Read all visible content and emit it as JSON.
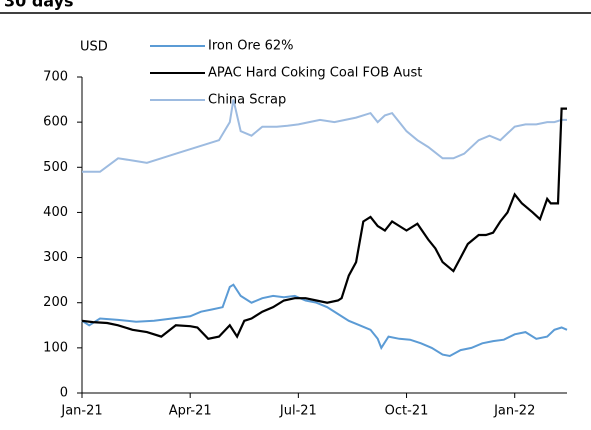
{
  "chart_data": {
    "type": "line",
    "title": "30 days",
    "y_label": "USD",
    "xlim": [
      0,
      13.45
    ],
    "xticks": [
      {
        "value": 0,
        "label": "Jan-21"
      },
      {
        "value": 3,
        "label": "Apr-21"
      },
      {
        "value": 6,
        "label": "Jul-21"
      },
      {
        "value": 9,
        "label": "Oct-21"
      },
      {
        "value": 12,
        "label": "Jan-22"
      }
    ],
    "ylim": [
      0,
      700
    ],
    "yticks": [
      0,
      100,
      200,
      300,
      400,
      500,
      600,
      700
    ],
    "grid": false,
    "legend": "top-left",
    "series": [
      {
        "name": "Iron Ore 62%",
        "color": "#5b9bd5",
        "x": [
          0,
          0.2,
          0.5,
          1,
          1.5,
          2,
          2.5,
          3,
          3.3,
          3.6,
          3.9,
          4.1,
          4.2,
          4.4,
          4.7,
          5,
          5.3,
          5.6,
          5.9,
          6.2,
          6.5,
          6.8,
          7.1,
          7.4,
          7.7,
          8,
          8.2,
          8.3,
          8.5,
          8.8,
          9.1,
          9.4,
          9.7,
          10,
          10.2,
          10.5,
          10.8,
          11.1,
          11.4,
          11.7,
          12,
          12.3,
          12.6,
          12.9,
          13.1,
          13.3,
          13.45
        ],
        "values": [
          160,
          150,
          165,
          162,
          158,
          160,
          165,
          170,
          180,
          185,
          190,
          235,
          240,
          215,
          200,
          210,
          215,
          212,
          215,
          205,
          200,
          190,
          175,
          160,
          150,
          140,
          120,
          100,
          125,
          120,
          118,
          110,
          100,
          85,
          82,
          95,
          100,
          110,
          115,
          118,
          130,
          135,
          120,
          125,
          140,
          145,
          140
        ]
      },
      {
        "name": "APAC Hard Coking Coal FOB Aust",
        "color": "#000000",
        "x": [
          0,
          0.3,
          0.7,
          1,
          1.4,
          1.8,
          2.2,
          2.6,
          3,
          3.2,
          3.5,
          3.8,
          4.1,
          4.3,
          4.5,
          4.7,
          5,
          5.3,
          5.6,
          5.9,
          6.2,
          6.5,
          6.8,
          7.1,
          7.2,
          7.4,
          7.6,
          7.8,
          8,
          8.2,
          8.4,
          8.6,
          8.8,
          9,
          9.3,
          9.6,
          9.8,
          10,
          10.3,
          10.5,
          10.7,
          11,
          11.2,
          11.4,
          11.6,
          11.8,
          12,
          12.2,
          12.5,
          12.7,
          12.9,
          13,
          13.2,
          13.3,
          13.45
        ],
        "values": [
          160,
          157,
          155,
          150,
          140,
          135,
          125,
          150,
          148,
          145,
          120,
          125,
          150,
          125,
          160,
          165,
          180,
          190,
          205,
          210,
          210,
          205,
          200,
          205,
          210,
          260,
          290,
          380,
          390,
          370,
          360,
          380,
          370,
          360,
          375,
          340,
          320,
          290,
          270,
          300,
          330,
          350,
          350,
          355,
          380,
          400,
          440,
          420,
          400,
          385,
          430,
          420,
          420,
          630,
          630
        ]
      },
      {
        "name": "China Scrap",
        "color": "#9dbbe0",
        "x": [
          0,
          0.5,
          1,
          1.4,
          1.8,
          2.2,
          2.6,
          3,
          3.4,
          3.8,
          4.1,
          4.2,
          4.4,
          4.7,
          5,
          5.4,
          5.7,
          6,
          6.3,
          6.6,
          7,
          7.3,
          7.6,
          8,
          8.2,
          8.4,
          8.6,
          8.8,
          9,
          9.3,
          9.6,
          10,
          10.3,
          10.6,
          11,
          11.3,
          11.6,
          11.8,
          12,
          12.3,
          12.6,
          12.9,
          13.1,
          13.3,
          13.45
        ],
        "values": [
          490,
          490,
          520,
          515,
          510,
          520,
          530,
          540,
          550,
          560,
          600,
          650,
          580,
          570,
          590,
          590,
          592,
          595,
          600,
          605,
          600,
          605,
          610,
          620,
          600,
          615,
          620,
          600,
          580,
          560,
          545,
          520,
          520,
          530,
          560,
          570,
          560,
          575,
          590,
          595,
          595,
          600,
          600,
          605,
          605
        ]
      }
    ]
  }
}
